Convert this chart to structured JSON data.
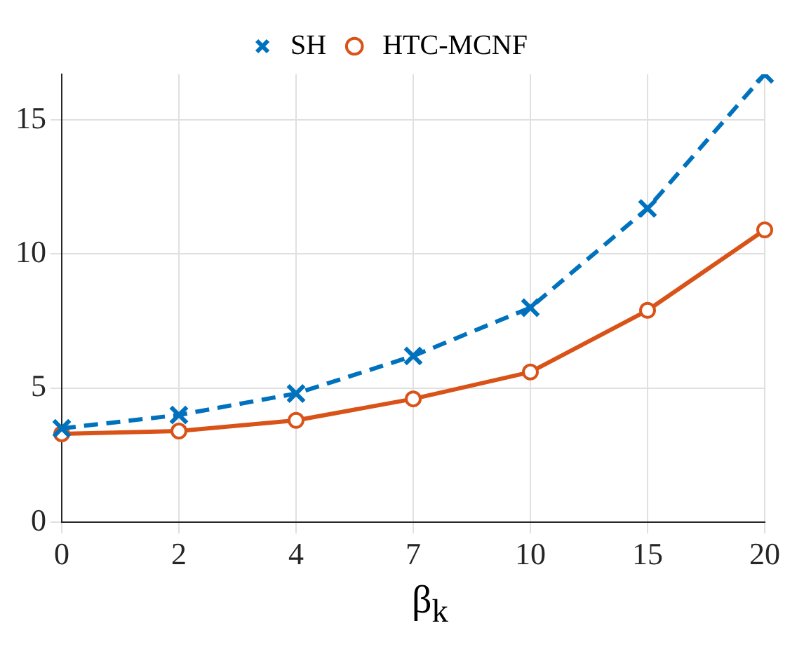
{
  "chart_data": {
    "type": "line",
    "xlabel": "β$_{k}$",
    "categories": [
      "0",
      "2",
      "4",
      "7",
      "10",
      "15",
      "20"
    ],
    "series": [
      {
        "name": "HTC-MCNF",
        "color": "#d95319",
        "values": [
          3.3,
          3.4,
          3.8,
          4.6,
          5.6,
          7.9,
          10.9
        ],
        "marker": "circle",
        "line_style": "solid"
      },
      {
        "name": "SH",
        "color": "#0072bd",
        "values": [
          3.5,
          4.0,
          4.8,
          6.2,
          8.0,
          11.7,
          16.7
        ],
        "marker": "cross",
        "line_style": "dashed"
      }
    ],
    "ylim": [
      0,
      16.7
    ],
    "yticks": [
      0,
      5,
      10,
      15
    ],
    "grid": true,
    "legend": "top"
  }
}
